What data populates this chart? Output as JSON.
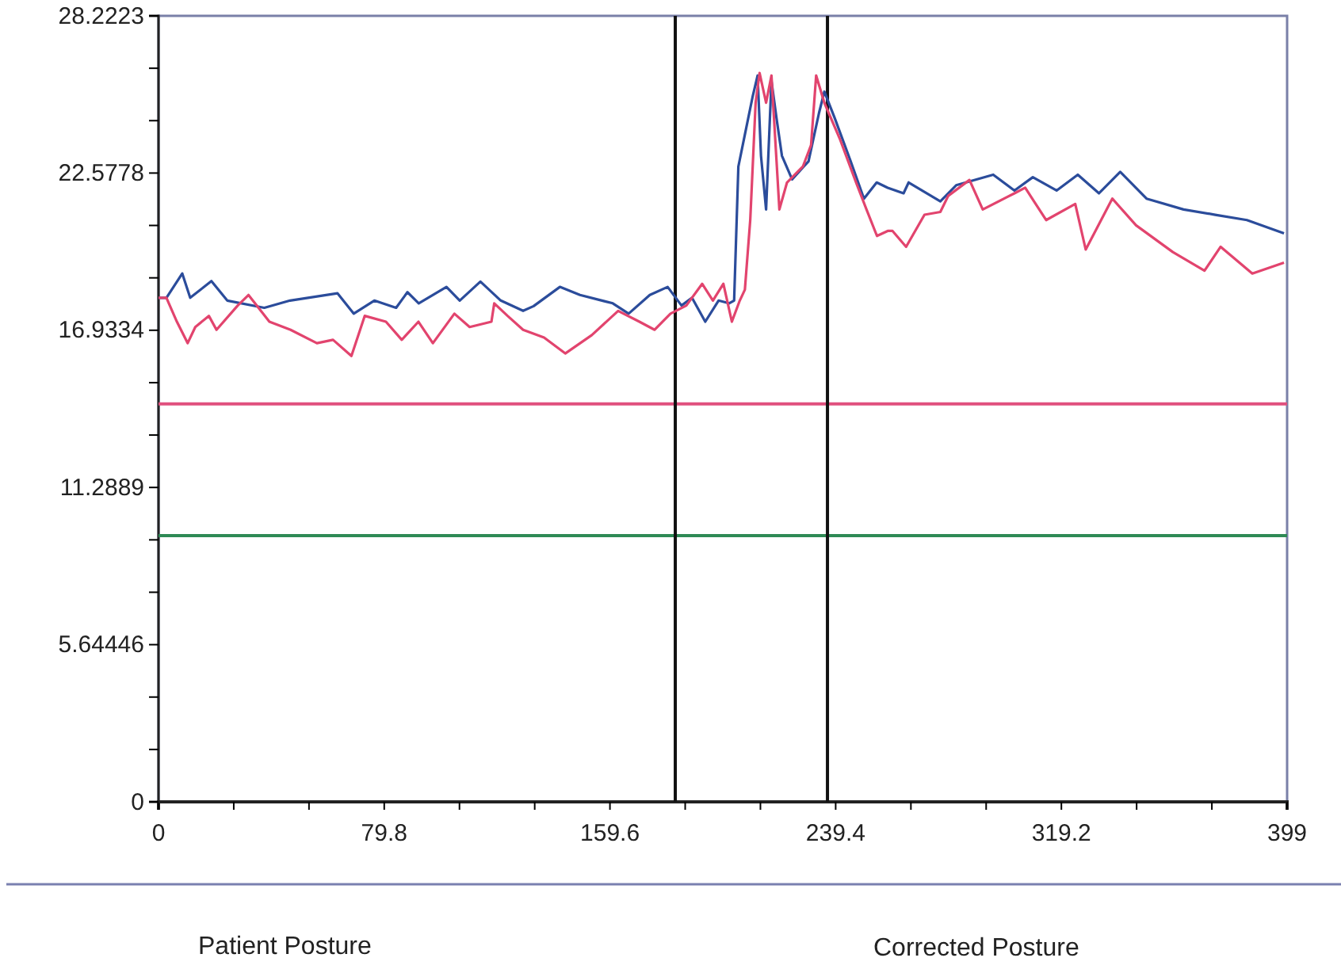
{
  "chart_data": {
    "type": "line",
    "xlim": [
      0,
      399
    ],
    "ylim": [
      0,
      28.2223
    ],
    "xticks": [
      0,
      {
        "value": 26.6,
        "label": null
      },
      {
        "value": 53.2,
        "label": null
      },
      79.8,
      {
        "value": 106.4,
        "label": null
      },
      {
        "value": 133,
        "label": null
      },
      159.6,
      {
        "value": 186.2,
        "label": null
      },
      {
        "value": 212.8,
        "label": null
      },
      239.4,
      {
        "value": 266,
        "label": null
      },
      {
        "value": 292.6,
        "label": null
      },
      319.2,
      {
        "value": 345.8,
        "label": null
      },
      {
        "value": 372.4,
        "label": null
      },
      399
    ],
    "yticks": [
      0,
      {
        "value": 1.88149,
        "label": null
      },
      {
        "value": 3.76297,
        "label": null
      },
      5.64446,
      {
        "value": 7.52595,
        "label": null
      },
      {
        "value": 9.40743,
        "label": null
      },
      11.2889,
      {
        "value": 13.1704,
        "label": null
      },
      {
        "value": 15.0519,
        "label": null
      },
      16.9334,
      {
        "value": 18.8149,
        "label": null
      },
      {
        "value": 20.6964,
        "label": null
      },
      22.5778,
      {
        "value": 24.4593,
        "label": null
      },
      {
        "value": 26.3408,
        "label": null
      },
      28.2223
    ],
    "grid": false,
    "marker": "none",
    "line_style": "solid",
    "series": [
      {
        "color": "#2b4c9b",
        "x": [
          0,
          2.8,
          8.4,
          11.2,
          18.7,
          24.3,
          37.4,
          46.5,
          63.3,
          69,
          76.3,
          84,
          88,
          92,
          101.8,
          106.5,
          113.8,
          121,
          128.9,
          132.6,
          141.9,
          149,
          160.6,
          166.2,
          173.7,
          180,
          184.9,
          188.6,
          193.3,
          198,
          201.7,
          203.5,
          205,
          207.3,
          210,
          211.8,
          213,
          214.8,
          216.7,
          218.5,
          220.4,
          224,
          229.8,
          233.5,
          235.4,
          239.1,
          244.7,
          249.4,
          253.9,
          257.8,
          263.4,
          265.2,
          276.4,
          282,
          295.1,
          302.6,
          309.1,
          317.5,
          325,
          332.5,
          340,
          349.3,
          362.4,
          373.6,
          384.8,
          397.9
        ],
        "values": [
          18.1,
          18.1,
          18.97,
          18.1,
          18.7,
          18.0,
          17.74,
          18.0,
          18.26,
          17.53,
          18.0,
          17.74,
          18.3,
          17.9,
          18.49,
          18.0,
          18.68,
          18.0,
          17.63,
          17.8,
          18.49,
          18.2,
          17.9,
          17.53,
          18.2,
          18.49,
          17.82,
          18.1,
          17.24,
          18.0,
          17.9,
          18.0,
          22.81,
          23.96,
          25.3,
          26.08,
          23.2,
          21.27,
          25.88,
          24.54,
          23.2,
          22.35,
          23.0,
          24.73,
          25.5,
          24.54,
          23.0,
          21.66,
          22.24,
          22.05,
          21.85,
          22.24,
          21.56,
          22.14,
          22.52,
          21.95,
          22.43,
          21.95,
          22.52,
          21.85,
          22.62,
          21.66,
          21.27,
          21.08,
          20.89,
          20.41
        ]
      },
      {
        "color": "#e2446e",
        "x": [
          0,
          2.8,
          6.5,
          10.3,
          13,
          17.8,
          20.5,
          28,
          31.8,
          39.2,
          46.7,
          56,
          61.7,
          68.2,
          72.9,
          80.4,
          86,
          91.9,
          97,
          104.6,
          110,
          117.7,
          118.7,
          123.4,
          128.9,
          136.3,
          143.8,
          153.2,
          162.5,
          170,
          175.4,
          181,
          186.6,
          192.2,
          196,
          199.7,
          202.7,
          205.5,
          207.3,
          209.2,
          211.1,
          212.5,
          214.8,
          216.7,
          218.5,
          219.5,
          222.2,
          227.8,
          230.7,
          232.5,
          235.4,
          241,
          246.6,
          250.3,
          254,
          257.8,
          259.5,
          264.3,
          270.8,
          276.4,
          279.2,
          286.7,
          291.4,
          302.6,
          306.4,
          313.8,
          324.1,
          327.8,
          337.2,
          345.6,
          358.6,
          369.8,
          375.5,
          386.7,
          397.9
        ],
        "values": [
          18.1,
          18.1,
          17.24,
          16.47,
          17.05,
          17.45,
          16.95,
          17.82,
          18.2,
          17.24,
          16.95,
          16.47,
          16.59,
          16.01,
          17.45,
          17.24,
          16.59,
          17.24,
          16.47,
          17.53,
          17.05,
          17.24,
          17.9,
          17.45,
          16.95,
          16.67,
          16.1,
          16.76,
          17.63,
          17.24,
          16.95,
          17.53,
          17.82,
          18.6,
          18.0,
          18.6,
          17.24,
          18.0,
          18.39,
          20.89,
          25.1,
          26.17,
          25.1,
          26.08,
          23.0,
          21.27,
          22.24,
          22.81,
          23.58,
          26.08,
          25.1,
          23.77,
          22.24,
          21.27,
          20.32,
          20.5,
          20.5,
          19.93,
          21.08,
          21.18,
          21.76,
          22.33,
          21.27,
          21.85,
          22.05,
          20.89,
          21.47,
          19.83,
          21.66,
          20.7,
          19.74,
          19.07,
          19.93,
          18.97,
          19.36
        ]
      }
    ],
    "ref_lines": [
      {
        "axis": "y",
        "value": 14.29,
        "color": "#e0507e"
      },
      {
        "axis": "y",
        "value": 9.56,
        "color": "#2e8a55"
      },
      {
        "axis": "x",
        "value": 182.7,
        "color": "#111111"
      },
      {
        "axis": "x",
        "value": 236.5,
        "color": "#111111"
      }
    ],
    "annotations": [
      "Patient Posture",
      "Corrected Posture"
    ]
  }
}
